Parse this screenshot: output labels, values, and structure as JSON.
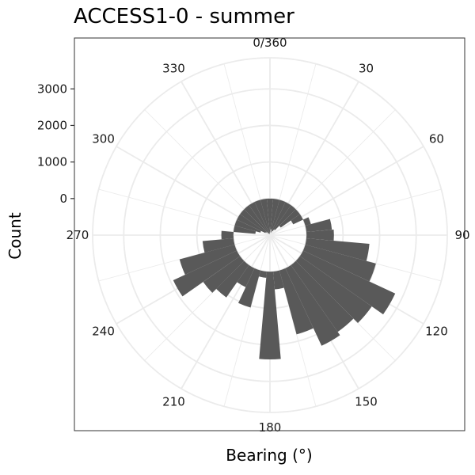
{
  "chart_data": {
    "type": "bar",
    "coordinate_system": "polar",
    "title": "ACCESS1-0 - summer",
    "xlabel": "Bearing (°)",
    "ylabel": "Count",
    "y_ticks": [
      0,
      1000,
      2000,
      3000
    ],
    "y_tick_labels": [
      "0",
      "1000",
      "2000",
      "3000"
    ],
    "angle_ticks": [
      0,
      30,
      60,
      90,
      120,
      150,
      180,
      210,
      240,
      270,
      300,
      330
    ],
    "angle_tick_labels": [
      "0/360",
      "30",
      "60",
      "90",
      "120",
      "150",
      "180",
      "210",
      "240",
      "270",
      "300",
      "330"
    ],
    "bin_width_degrees": 10,
    "radial_range": [
      -1000,
      3850
    ],
    "bar_color": "#595959",
    "panel_background": "#ffffff",
    "grid_color": "#ebebeb",
    "categories": [
      0,
      10,
      20,
      30,
      40,
      50,
      60,
      70,
      80,
      90,
      100,
      110,
      120,
      130,
      140,
      150,
      160,
      170,
      180,
      190,
      200,
      210,
      220,
      230,
      240,
      250,
      260,
      270,
      280,
      290,
      300,
      310,
      320,
      330,
      340,
      350
    ],
    "values": [
      -930,
      -840,
      -920,
      -870,
      -810,
      -640,
      -300,
      160,
      700,
      750,
      1730,
      2000,
      2780,
      2400,
      2230,
      2340,
      1810,
      490,
      2400,
      170,
      1050,
      570,
      1080,
      1230,
      1920,
      1560,
      850,
      330,
      -600,
      -730,
      -860,
      -880,
      -940,
      -960,
      -970,
      -960
    ]
  }
}
